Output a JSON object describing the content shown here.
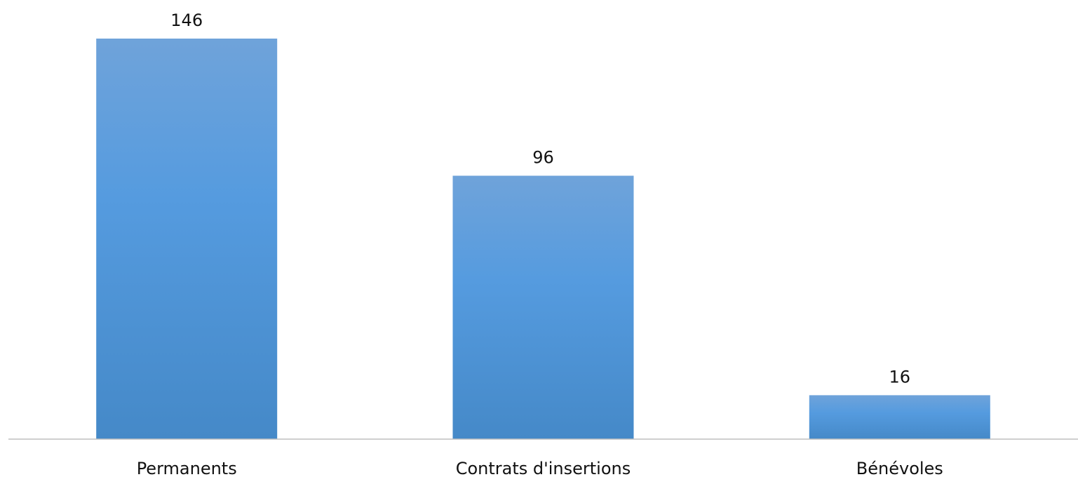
{
  "chart_data": {
    "type": "bar",
    "categories": [
      "Permanents",
      "Contrats d'insertions",
      "Bénévoles"
    ],
    "values": [
      146,
      96,
      16
    ],
    "title": "",
    "xlabel": "",
    "ylabel": "",
    "ylim": [
      0,
      146
    ],
    "grid": false,
    "legend": "none",
    "data_labels": true,
    "colors": {
      "bar_top": "#6FA3DA",
      "bar_mid": "#559BDF",
      "bar_bottom": "#4589C8",
      "axis": "#BFBFBF",
      "text": "#111111"
    }
  }
}
